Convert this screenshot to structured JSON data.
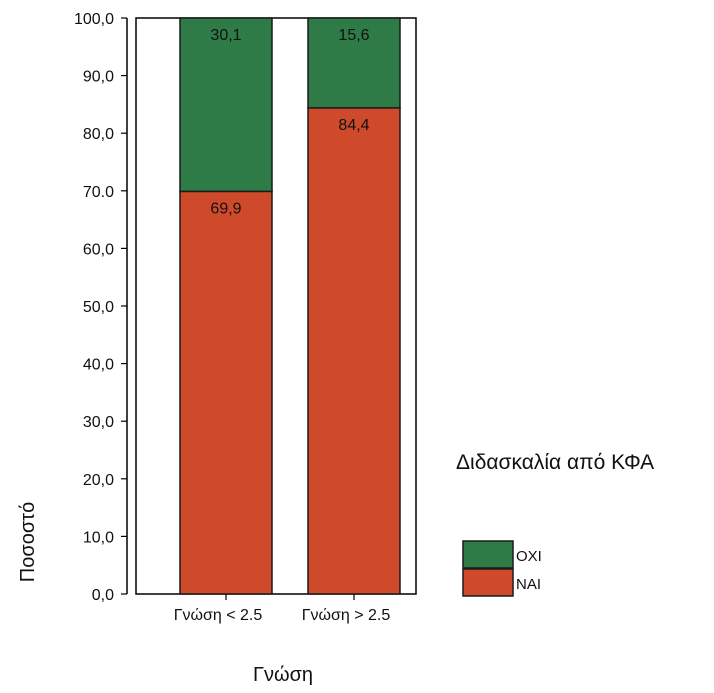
{
  "chart_data": {
    "type": "bar",
    "stacked": true,
    "categories": [
      "Γνώση < 2.5",
      "Γνώση > 2.5"
    ],
    "series": [
      {
        "name": "ΝΑΙ",
        "values": [
          69.9,
          84.4
        ],
        "labels": [
          "69,9",
          "84,4"
        ],
        "color": "#cf4a2a"
      },
      {
        "name": "ΟΧΙ",
        "values": [
          30.1,
          15.6
        ],
        "labels": [
          "30,1",
          "15,6"
        ],
        "color": "#2e7b48"
      }
    ],
    "ylim": [
      0,
      100
    ],
    "yticks": [
      {
        "value": 0,
        "label": "0,0"
      },
      {
        "value": 10,
        "label": "10,0"
      },
      {
        "value": 20,
        "label": "20,0"
      },
      {
        "value": 30,
        "label": "30,0"
      },
      {
        "value": 40,
        "label": "40,0"
      },
      {
        "value": 50,
        "label": "50,0"
      },
      {
        "value": 60,
        "label": "60,0"
      },
      {
        "value": 70,
        "label": "70.0"
      },
      {
        "value": 80,
        "label": "80,0"
      },
      {
        "value": 90,
        "label": "90,0"
      },
      {
        "value": 100,
        "label": "100,0"
      }
    ],
    "xlabel": "Γνώση",
    "ylabel": "Ποσοστό",
    "legend": {
      "title": "Διδασκαλία από ΚΦΑ",
      "placement": "right",
      "items": [
        {
          "label": "ΟΧΙ",
          "color": "#2e7b48"
        },
        {
          "label": "ΝΑΙ",
          "color": "#cf4a2a"
        }
      ]
    },
    "grid": false
  }
}
